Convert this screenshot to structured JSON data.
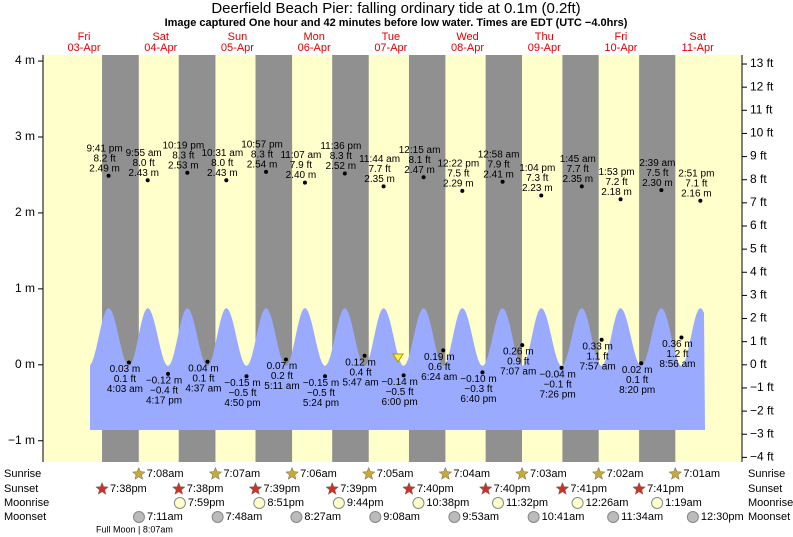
{
  "title": "Deerfield Beach Pier: falling  ordinary tide at 0.1m (0.2ft)",
  "subtitle": "Image captured One hour and 42 minutes before low water. Times are EDT (UTC −4.0hrs)",
  "row_labels": {
    "sunrise": "Sunrise",
    "sunset": "Sunset",
    "moonrise": "Moonrise",
    "moonset": "Moonset"
  },
  "moon_phase": "Full Moon | 8:07am",
  "chart_data": {
    "type": "tide",
    "ylim": [
      -1.28,
      4.08
    ],
    "yticks": [
      {
        "value": -1,
        "label": "−1 m"
      },
      {
        "value": 0,
        "label": "0 m"
      },
      {
        "value": 1,
        "label": "1 m"
      },
      {
        "value": 2,
        "label": "2 m"
      },
      {
        "value": 3,
        "label": "3 m"
      },
      {
        "value": 4,
        "label": "4 m"
      }
    ],
    "y2lim": [
      -4.2,
      13.39
    ],
    "y2ticks": [
      {
        "value": -4,
        "label": "−4 ft"
      },
      {
        "value": -3,
        "label": "−3 ft"
      },
      {
        "value": -2,
        "label": "−2 ft"
      },
      {
        "value": -1,
        "label": "−1 ft"
      },
      {
        "value": 0,
        "label": "0 ft"
      },
      {
        "value": 1,
        "label": "1 ft"
      },
      {
        "value": 2,
        "label": "2 ft"
      },
      {
        "value": 3,
        "label": "3 ft"
      },
      {
        "value": 4,
        "label": "4 ft"
      },
      {
        "value": 5,
        "label": "5 ft"
      },
      {
        "value": 6,
        "label": "6 ft"
      },
      {
        "value": 7,
        "label": "7 ft"
      },
      {
        "value": 8,
        "label": "8 ft"
      },
      {
        "value": 9,
        "label": "9 ft"
      },
      {
        "value": 10,
        "label": "10 ft"
      },
      {
        "value": 11,
        "label": "11 ft"
      },
      {
        "value": 12,
        "label": "12 ft"
      },
      {
        "value": 13,
        "label": "13 ft"
      }
    ],
    "days": [
      {
        "weekday": "Fri",
        "date": "03-Apr",
        "sunset": "7:38pm",
        "tides": [
          {
            "time": "9:41 pm",
            "m": 2.49,
            "m_label": "2.49 m",
            "ft_label": "8.2 ft"
          }
        ]
      },
      {
        "weekday": "Sat",
        "date": "04-Apr",
        "sunrise": "7:08am",
        "sunset": "7:38pm",
        "moonrise": "7:59pm",
        "moonset": "7:11am",
        "tides": [
          {
            "time": "4:03 am",
            "m": 0.03,
            "m_label": "0.03 m",
            "ft_label": "0.1 ft"
          },
          {
            "time": "9:55 am",
            "m": 2.43,
            "m_label": "2.43 m",
            "ft_label": "8.0 ft"
          },
          {
            "time": "4:17 pm",
            "m": -0.12,
            "m_label": "−0.12 m",
            "ft_label": "−0.4 ft"
          },
          {
            "time": "10:19 pm",
            "m": 2.53,
            "m_label": "2.53 m",
            "ft_label": "8.3 ft"
          }
        ]
      },
      {
        "weekday": "Sun",
        "date": "05-Apr",
        "sunrise": "7:07am",
        "sunset": "7:39pm",
        "moonrise": "8:51pm",
        "moonset": "7:48am",
        "tides": [
          {
            "time": "4:37 am",
            "m": 0.04,
            "m_label": "0.04 m",
            "ft_label": "0.1 ft"
          },
          {
            "time": "10:31 am",
            "m": 2.43,
            "m_label": "2.43 m",
            "ft_label": "8.0 ft"
          },
          {
            "time": "4:50 pm",
            "m": -0.15,
            "m_label": "−0.15 m",
            "ft_label": "−0.5 ft"
          },
          {
            "time": "10:57 pm",
            "m": 2.54,
            "m_label": "2.54 m",
            "ft_label": "8.3 ft"
          }
        ]
      },
      {
        "weekday": "Mon",
        "date": "06-Apr",
        "sunrise": "7:06am",
        "sunset": "7:39pm",
        "moonrise": "9:44pm",
        "moonset": "8:27am",
        "tides": [
          {
            "time": "5:11 am",
            "m": 0.07,
            "m_label": "0.07 m",
            "ft_label": "0.2 ft"
          },
          {
            "time": "11:07 am",
            "m": 2.4,
            "m_label": "2.40 m",
            "ft_label": "7.9 ft"
          },
          {
            "time": "5:24 pm",
            "m": -0.15,
            "m_label": "−0.15 m",
            "ft_label": "−0.5 ft"
          },
          {
            "time": "11:36 pm",
            "m": 2.52,
            "m_label": "2.52 m",
            "ft_label": "8.3 ft"
          }
        ]
      },
      {
        "weekday": "Tue",
        "date": "07-Apr",
        "sunrise": "7:05am",
        "sunset": "7:40pm",
        "moonrise": "10:38pm",
        "moonset": "9:08am",
        "tides": [
          {
            "time": "5:47 am",
            "m": 0.12,
            "m_label": "0.12 m",
            "ft_label": "0.4 ft"
          },
          {
            "time": "11:44 am",
            "m": 2.35,
            "m_label": "2.35 m",
            "ft_label": "7.7 ft"
          },
          {
            "time": "6:00 pm",
            "m": -0.14,
            "m_label": "−0.14 m",
            "ft_label": "−0.5 ft"
          }
        ]
      },
      {
        "weekday": "Wed",
        "date": "08-Apr",
        "sunrise": "7:04am",
        "sunset": "7:40pm",
        "moonrise": "11:32pm",
        "moonset": "9:53am",
        "tides": [
          {
            "time": "12:15 am",
            "m": 2.47,
            "m_label": "2.47 m",
            "ft_label": "8.1 ft"
          },
          {
            "time": "6:24 am",
            "m": 0.19,
            "m_label": "0.19 m",
            "ft_label": "0.6 ft"
          },
          {
            "time": "12:22 pm",
            "m": 2.29,
            "m_label": "2.29 m",
            "ft_label": "7.5 ft"
          },
          {
            "time": "6:40 pm",
            "m": -0.1,
            "m_label": "−0.10 m",
            "ft_label": "−0.3 ft"
          }
        ]
      },
      {
        "weekday": "Thu",
        "date": "09-Apr",
        "sunrise": "7:03am",
        "sunset": "7:41pm",
        "moonset": "10:41am",
        "tides": [
          {
            "time": "12:58 am",
            "m": 2.41,
            "m_label": "2.41 m",
            "ft_label": "7.9 ft"
          },
          {
            "time": "7:07 am",
            "m": 0.26,
            "m_label": "0.26 m",
            "ft_label": "0.9 ft"
          },
          {
            "time": "1:04 pm",
            "m": 2.23,
            "m_label": "2.23 m",
            "ft_label": "7.3 ft"
          },
          {
            "time": "7:26 pm",
            "m": -0.04,
            "m_label": "−0.04 m",
            "ft_label": "−0.1 ft"
          }
        ]
      },
      {
        "weekday": "Fri",
        "date": "10-Apr",
        "sunrise": "7:02am",
        "sunset": "7:41pm",
        "moonrise": "12:26am",
        "moonset": "11:34am",
        "tides": [
          {
            "time": "1:45 am",
            "m": 2.35,
            "m_label": "2.35 m",
            "ft_label": "7.7 ft"
          },
          {
            "time": "7:57 am",
            "m": 0.33,
            "m_label": "0.33 m",
            "ft_label": "1.1 ft"
          },
          {
            "time": "1:53 pm",
            "m": 2.18,
            "m_label": "2.18 m",
            "ft_label": "7.2 ft"
          },
          {
            "time": "8:20 pm",
            "m": 0.02,
            "m_label": "0.02 m",
            "ft_label": "0.1 ft"
          }
        ]
      },
      {
        "weekday": "Sat",
        "date": "11-Apr",
        "sunrise": "7:01am",
        "moonrise": "1:19am",
        "moonset": "12:30pm",
        "tides": [
          {
            "time": "2:39 am",
            "m": 2.3,
            "m_label": "2.30 m",
            "ft_label": "7.5 ft"
          },
          {
            "time": "8:56 am",
            "m": 0.36,
            "m_label": "0.36 m",
            "ft_label": "1.2 ft"
          },
          {
            "time": "2:51 pm",
            "m": 2.16,
            "m_label": "2.16 m",
            "ft_label": "7.1 ft"
          }
        ]
      }
    ]
  }
}
